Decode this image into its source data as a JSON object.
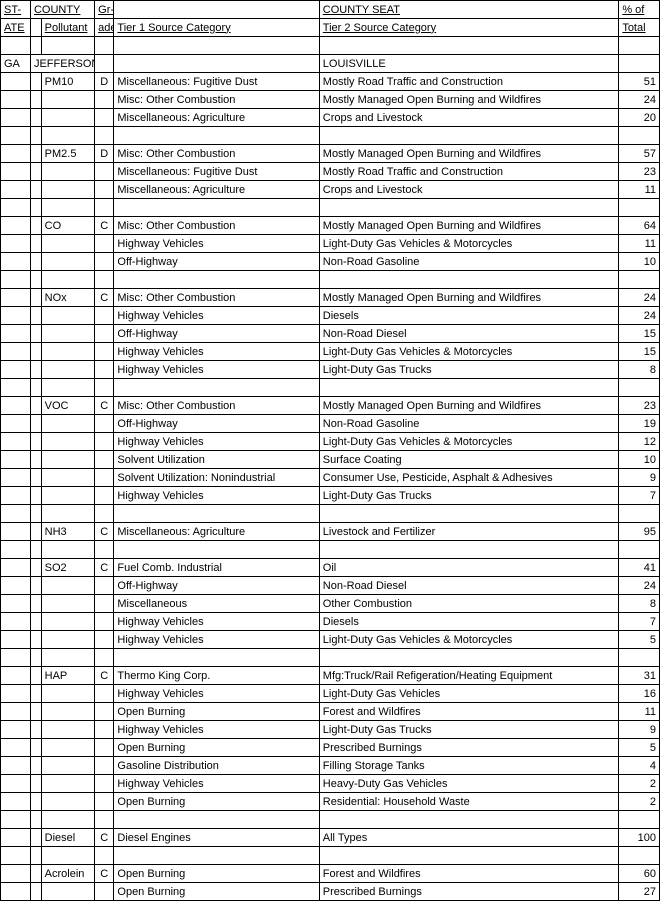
{
  "headers": {
    "state1": "ST-",
    "state2": "ATE",
    "county": "COUNTY",
    "grade1": "Gr-",
    "grade2": "ade",
    "pollutant": "Pollutant",
    "tier1": "Tier 1 Source Category",
    "countyseat": "COUNTY SEAT",
    "tier2": "Tier 2 Source Category",
    "pct1": "% of",
    "pct2": "Total"
  },
  "rows": [
    {
      "type": "header1"
    },
    {
      "type": "header2"
    },
    {
      "type": "blank"
    },
    {
      "state": "GA",
      "county": "JEFFERSON",
      "countyseat": "LOUISVILLE"
    },
    {
      "pollutant": "PM10",
      "grade": "D",
      "t1": "Miscellaneous: Fugitive Dust",
      "t2": "Mostly Road Traffic and Construction",
      "pct": "51"
    },
    {
      "t1": "Misc: Other Combustion",
      "t2": "Mostly Managed Open Burning and Wildfires",
      "pct": "24"
    },
    {
      "t1": "Miscellaneous: Agriculture",
      "t2": "Crops and Livestock",
      "pct": "20"
    },
    {
      "type": "blank"
    },
    {
      "pollutant": "PM2.5",
      "grade": "D",
      "t1": "Misc: Other Combustion",
      "t2": "Mostly Managed Open Burning and Wildfires",
      "pct": "57"
    },
    {
      "t1": "Miscellaneous: Fugitive Dust",
      "t2": "Mostly Road Traffic and Construction",
      "pct": "23"
    },
    {
      "t1": "Miscellaneous: Agriculture",
      "t2": "Crops and Livestock",
      "pct": "11"
    },
    {
      "type": "blank"
    },
    {
      "pollutant": "CO",
      "grade": "C",
      "t1": "Misc: Other Combustion",
      "t2": "Mostly Managed Open Burning and Wildfires",
      "pct": "64"
    },
    {
      "t1": "Highway Vehicles",
      "t2": "Light-Duty Gas Vehicles & Motorcycles",
      "pct": "11"
    },
    {
      "t1": "Off-Highway",
      "t2": "Non-Road Gasoline",
      "pct": "10"
    },
    {
      "type": "blank"
    },
    {
      "pollutant": "NOx",
      "grade": "C",
      "t1": "Misc: Other Combustion",
      "t2": "Mostly Managed Open Burning and Wildfires",
      "pct": "24"
    },
    {
      "t1": "Highway Vehicles",
      "t2": "Diesels",
      "pct": "24"
    },
    {
      "t1": "Off-Highway",
      "t2": "Non-Road Diesel",
      "pct": "15"
    },
    {
      "t1": "Highway Vehicles",
      "t2": "Light-Duty Gas Vehicles & Motorcycles",
      "pct": "15"
    },
    {
      "t1": "Highway Vehicles",
      "t2": "Light-Duty Gas Trucks",
      "pct": "8"
    },
    {
      "type": "blank"
    },
    {
      "pollutant": "VOC",
      "grade": "C",
      "t1": "Misc: Other Combustion",
      "t2": "Mostly Managed Open Burning and Wildfires",
      "pct": "23"
    },
    {
      "t1": "Off-Highway",
      "t2": "Non-Road Gasoline",
      "pct": "19"
    },
    {
      "t1": "Highway Vehicles",
      "t2": "Light-Duty Gas Vehicles & Motorcycles",
      "pct": "12"
    },
    {
      "t1": "Solvent Utilization",
      "t2": "Surface Coating",
      "pct": "10"
    },
    {
      "t1": "Solvent Utilization: Nonindustrial",
      "t2": "Consumer Use, Pesticide, Asphalt & Adhesives",
      "pct": "9"
    },
    {
      "t1": "Highway Vehicles",
      "t2": "Light-Duty Gas Trucks",
      "pct": "7"
    },
    {
      "type": "blank"
    },
    {
      "pollutant": "NH3",
      "grade": "C",
      "t1": "Miscellaneous: Agriculture",
      "t2": "Livestock and Fertilizer",
      "pct": "95"
    },
    {
      "type": "blank"
    },
    {
      "pollutant": "SO2",
      "grade": "C",
      "t1": "Fuel Comb. Industrial",
      "t2": "Oil",
      "pct": "41"
    },
    {
      "t1": "Off-Highway",
      "t2": "Non-Road Diesel",
      "pct": "24"
    },
    {
      "t1": "Miscellaneous",
      "t2": "Other Combustion",
      "pct": "8"
    },
    {
      "t1": "Highway Vehicles",
      "t2": "Diesels",
      "pct": "7"
    },
    {
      "t1": "Highway Vehicles",
      "t2": "Light-Duty Gas Vehicles & Motorcycles",
      "pct": "5"
    },
    {
      "type": "blank"
    },
    {
      "pollutant": "HAP",
      "grade": "C",
      "t1": "Thermo King Corp.",
      "t2": "Mfg:Truck/Rail Refigeration/Heating Equipment",
      "pct": "31"
    },
    {
      "t1": "Highway Vehicles",
      "t2": "Light-Duty Gas Vehicles",
      "pct": "16"
    },
    {
      "t1": "Open Burning",
      "t2": "Forest and Wildfires",
      "pct": "11"
    },
    {
      "t1": "Highway Vehicles",
      "t2": "Light-Duty Gas Trucks",
      "pct": "9"
    },
    {
      "t1": "Open Burning",
      "t2": "Prescribed Burnings",
      "pct": "5"
    },
    {
      "t1": "Gasoline Distribution",
      "t2": "Filling Storage Tanks",
      "pct": "4"
    },
    {
      "t1": "Highway Vehicles",
      "t2": "Heavy-Duty Gas Vehicles",
      "pct": "2"
    },
    {
      "t1": "Open Burning",
      "t2": "Residential: Household Waste",
      "pct": "2"
    },
    {
      "type": "blank"
    },
    {
      "pollutant": "Diesel",
      "grade": "C",
      "t1": "Diesel Engines",
      "t2": "All Types",
      "pct": "100"
    },
    {
      "type": "blank"
    },
    {
      "pollutant": "Acrolein",
      "grade": "C",
      "t1": "Open Burning",
      "t2": "Forest and Wildfires",
      "pct": "60"
    },
    {
      "t1": "Open Burning",
      "t2": "Prescribed Burnings",
      "pct": "27"
    }
  ]
}
